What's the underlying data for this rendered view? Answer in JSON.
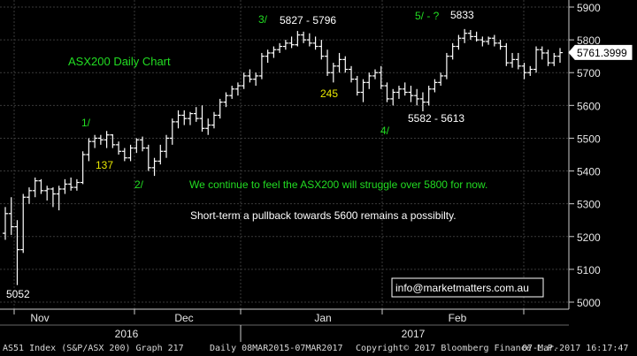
{
  "chart_data": {
    "type": "ohlc",
    "title": "ASX200 Daily Chart",
    "ylim": [
      4990,
      5910
    ],
    "y_ticks": [
      5000,
      5100,
      5200,
      5300,
      5400,
      5500,
      5600,
      5700,
      5800,
      5900
    ],
    "grid": true,
    "last_price": "5761.3999",
    "x_month_labels": [
      "Nov",
      "Dec",
      "Jan",
      "Feb"
    ],
    "x_year_labels": [
      "2016",
      "2017"
    ],
    "bars": [
      {
        "o": 5210,
        "h": 5290,
        "l": 5190,
        "c": 5270
      },
      {
        "o": 5270,
        "h": 5320,
        "l": 5205,
        "c": 5230
      },
      {
        "o": 5230,
        "h": 5250,
        "l": 5052,
        "c": 5160
      },
      {
        "o": 5160,
        "h": 5330,
        "l": 5150,
        "c": 5320
      },
      {
        "o": 5320,
        "h": 5350,
        "l": 5300,
        "c": 5340
      },
      {
        "o": 5340,
        "h": 5380,
        "l": 5320,
        "c": 5370
      },
      {
        "o": 5370,
        "h": 5375,
        "l": 5330,
        "c": 5340
      },
      {
        "o": 5340,
        "h": 5355,
        "l": 5310,
        "c": 5345
      },
      {
        "o": 5345,
        "h": 5350,
        "l": 5290,
        "c": 5330
      },
      {
        "o": 5330,
        "h": 5355,
        "l": 5280,
        "c": 5345
      },
      {
        "o": 5345,
        "h": 5375,
        "l": 5330,
        "c": 5360
      },
      {
        "o": 5360,
        "h": 5380,
        "l": 5340,
        "c": 5350
      },
      {
        "o": 5350,
        "h": 5375,
        "l": 5340,
        "c": 5365
      },
      {
        "o": 5365,
        "h": 5460,
        "l": 5360,
        "c": 5450
      },
      {
        "o": 5450,
        "h": 5500,
        "l": 5430,
        "c": 5490
      },
      {
        "o": 5490,
        "h": 5510,
        "l": 5470,
        "c": 5500
      },
      {
        "o": 5500,
        "h": 5510,
        "l": 5480,
        "c": 5495
      },
      {
        "o": 5495,
        "h": 5522,
        "l": 5470,
        "c": 5510
      },
      {
        "o": 5510,
        "h": 5512,
        "l": 5470,
        "c": 5480
      },
      {
        "o": 5480,
        "h": 5490,
        "l": 5450,
        "c": 5460
      },
      {
        "o": 5460,
        "h": 5470,
        "l": 5430,
        "c": 5440
      },
      {
        "o": 5440,
        "h": 5480,
        "l": 5430,
        "c": 5470
      },
      {
        "o": 5470,
        "h": 5500,
        "l": 5455,
        "c": 5495
      },
      {
        "o": 5495,
        "h": 5505,
        "l": 5460,
        "c": 5470
      },
      {
        "o": 5470,
        "h": 5480,
        "l": 5400,
        "c": 5410
      },
      {
        "o": 5410,
        "h": 5440,
        "l": 5385,
        "c": 5430
      },
      {
        "o": 5430,
        "h": 5480,
        "l": 5420,
        "c": 5460
      },
      {
        "o": 5460,
        "h": 5510,
        "l": 5440,
        "c": 5500
      },
      {
        "o": 5500,
        "h": 5560,
        "l": 5480,
        "c": 5550
      },
      {
        "o": 5550,
        "h": 5585,
        "l": 5530,
        "c": 5570
      },
      {
        "o": 5570,
        "h": 5585,
        "l": 5540,
        "c": 5560
      },
      {
        "o": 5560,
        "h": 5580,
        "l": 5540,
        "c": 5575
      },
      {
        "o": 5575,
        "h": 5595,
        "l": 5550,
        "c": 5560
      },
      {
        "o": 5560,
        "h": 5600,
        "l": 5520,
        "c": 5530
      },
      {
        "o": 5530,
        "h": 5560,
        "l": 5510,
        "c": 5540
      },
      {
        "o": 5540,
        "h": 5580,
        "l": 5530,
        "c": 5570
      },
      {
        "o": 5570,
        "h": 5620,
        "l": 5560,
        "c": 5610
      },
      {
        "o": 5610,
        "h": 5640,
        "l": 5595,
        "c": 5630
      },
      {
        "o": 5630,
        "h": 5660,
        "l": 5620,
        "c": 5650
      },
      {
        "o": 5650,
        "h": 5670,
        "l": 5630,
        "c": 5660
      },
      {
        "o": 5660,
        "h": 5700,
        "l": 5650,
        "c": 5690
      },
      {
        "o": 5690,
        "h": 5710,
        "l": 5670,
        "c": 5680
      },
      {
        "o": 5680,
        "h": 5700,
        "l": 5660,
        "c": 5690
      },
      {
        "o": 5690,
        "h": 5760,
        "l": 5680,
        "c": 5750
      },
      {
        "o": 5750,
        "h": 5770,
        "l": 5730,
        "c": 5760
      },
      {
        "o": 5760,
        "h": 5780,
        "l": 5745,
        "c": 5770
      },
      {
        "o": 5770,
        "h": 5790,
        "l": 5760,
        "c": 5780
      },
      {
        "o": 5780,
        "h": 5800,
        "l": 5770,
        "c": 5790
      },
      {
        "o": 5790,
        "h": 5810,
        "l": 5775,
        "c": 5785
      },
      {
        "o": 5785,
        "h": 5827,
        "l": 5780,
        "c": 5815
      },
      {
        "o": 5815,
        "h": 5825,
        "l": 5790,
        "c": 5800
      },
      {
        "o": 5800,
        "h": 5820,
        "l": 5780,
        "c": 5790
      },
      {
        "o": 5790,
        "h": 5810,
        "l": 5770,
        "c": 5780
      },
      {
        "o": 5780,
        "h": 5800,
        "l": 5740,
        "c": 5750
      },
      {
        "o": 5750,
        "h": 5770,
        "l": 5690,
        "c": 5700
      },
      {
        "o": 5700,
        "h": 5730,
        "l": 5670,
        "c": 5720
      },
      {
        "o": 5720,
        "h": 5760,
        "l": 5700,
        "c": 5740
      },
      {
        "o": 5740,
        "h": 5750,
        "l": 5700,
        "c": 5710
      },
      {
        "o": 5710,
        "h": 5720,
        "l": 5670,
        "c": 5680
      },
      {
        "o": 5680,
        "h": 5690,
        "l": 5630,
        "c": 5640
      },
      {
        "o": 5640,
        "h": 5680,
        "l": 5610,
        "c": 5670
      },
      {
        "o": 5670,
        "h": 5700,
        "l": 5650,
        "c": 5690
      },
      {
        "o": 5690,
        "h": 5710,
        "l": 5680,
        "c": 5700
      },
      {
        "o": 5700,
        "h": 5720,
        "l": 5650,
        "c": 5660
      },
      {
        "o": 5660,
        "h": 5670,
        "l": 5610,
        "c": 5620
      },
      {
        "o": 5620,
        "h": 5650,
        "l": 5600,
        "c": 5640
      },
      {
        "o": 5640,
        "h": 5660,
        "l": 5620,
        "c": 5650
      },
      {
        "o": 5650,
        "h": 5670,
        "l": 5630,
        "c": 5640
      },
      {
        "o": 5640,
        "h": 5660,
        "l": 5610,
        "c": 5630
      },
      {
        "o": 5630,
        "h": 5650,
        "l": 5600,
        "c": 5620
      },
      {
        "o": 5620,
        "h": 5640,
        "l": 5582,
        "c": 5610
      },
      {
        "o": 5610,
        "h": 5660,
        "l": 5600,
        "c": 5650
      },
      {
        "o": 5650,
        "h": 5680,
        "l": 5640,
        "c": 5670
      },
      {
        "o": 5670,
        "h": 5700,
        "l": 5660,
        "c": 5690
      },
      {
        "o": 5690,
        "h": 5760,
        "l": 5680,
        "c": 5750
      },
      {
        "o": 5750,
        "h": 5790,
        "l": 5740,
        "c": 5780
      },
      {
        "o": 5780,
        "h": 5815,
        "l": 5770,
        "c": 5805
      },
      {
        "o": 5805,
        "h": 5833,
        "l": 5790,
        "c": 5820
      },
      {
        "o": 5820,
        "h": 5830,
        "l": 5800,
        "c": 5810
      },
      {
        "o": 5810,
        "h": 5825,
        "l": 5795,
        "c": 5800
      },
      {
        "o": 5800,
        "h": 5810,
        "l": 5780,
        "c": 5795
      },
      {
        "o": 5795,
        "h": 5810,
        "l": 5785,
        "c": 5805
      },
      {
        "o": 5805,
        "h": 5815,
        "l": 5780,
        "c": 5790
      },
      {
        "o": 5790,
        "h": 5800,
        "l": 5770,
        "c": 5780
      },
      {
        "o": 5780,
        "h": 5790,
        "l": 5720,
        "c": 5730
      },
      {
        "o": 5730,
        "h": 5760,
        "l": 5715,
        "c": 5740
      },
      {
        "o": 5740,
        "h": 5760,
        "l": 5710,
        "c": 5720
      },
      {
        "o": 5720,
        "h": 5730,
        "l": 5680,
        "c": 5700
      },
      {
        "o": 5700,
        "h": 5720,
        "l": 5690,
        "c": 5710
      },
      {
        "o": 5710,
        "h": 5780,
        "l": 5700,
        "c": 5770
      },
      {
        "o": 5770,
        "h": 5780,
        "l": 5740,
        "c": 5760
      },
      {
        "o": 5760,
        "h": 5770,
        "l": 5720,
        "c": 5730
      },
      {
        "o": 5730,
        "h": 5760,
        "l": 5720,
        "c": 5750
      },
      {
        "o": 5750,
        "h": 5775,
        "l": 5730,
        "c": 5761
      }
    ],
    "annotations": [
      {
        "text": "ASX200 Daily Chart",
        "color": "#22dd22",
        "size": 13
      },
      {
        "text": "1/",
        "color": "#22dd22",
        "size": 12
      },
      {
        "text": "137",
        "color": "#e8e800",
        "size": 12
      },
      {
        "text": "2/",
        "color": "#22dd22",
        "size": 12
      },
      {
        "text": "3/",
        "color": "#22dd22",
        "size": 12
      },
      {
        "text": "5827 - 5796",
        "color": "#ffffff",
        "size": 12
      },
      {
        "text": "245",
        "color": "#e8e800",
        "size": 12
      },
      {
        "text": "4/",
        "color": "#22dd22",
        "size": 12
      },
      {
        "text": "5582 - 5613",
        "color": "#ffffff",
        "size": 12
      },
      {
        "text": "5/ - ?",
        "color": "#22dd22",
        "size": 12
      },
      {
        "text": "5833",
        "color": "#ffffff",
        "size": 12
      },
      {
        "text": "5052",
        "color": "#ffffff",
        "size": 12
      },
      {
        "text": "We continue to feel the ASX200 will struggle over 5800 for now.",
        "color": "#22dd22",
        "size": 12
      },
      {
        "text": "Short-term a pullback towards 5600 remains a possibilty.",
        "color": "#ffffff",
        "size": 12
      }
    ],
    "contact_box": "info@marketmatters.com.au"
  },
  "footer": {
    "security": "AS51 Index (S&P/ASX 200) Graph 217",
    "range": "Daily 08MAR2015-07MAR2017",
    "copyright": "Copyright© 2017 Bloomberg Finance L.P.",
    "timestamp": "07-Mar-2017 16:17:47"
  }
}
